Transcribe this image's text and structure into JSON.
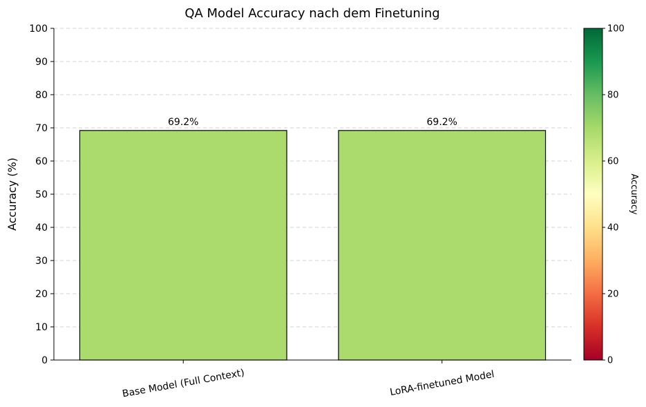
{
  "chart_data": {
    "type": "bar",
    "title": "QA Model Accuracy nach dem Finetuning",
    "xlabel": "",
    "ylabel": "Accuracy (%)",
    "ylim": [
      0,
      100
    ],
    "yticks": [
      0,
      10,
      20,
      30,
      40,
      50,
      60,
      70,
      80,
      90,
      100
    ],
    "categories": [
      "Base Model (Full Context)",
      "LoRA-finetuned Model"
    ],
    "values": [
      69.2,
      69.2
    ],
    "data_labels": [
      "69.2%",
      "69.2%"
    ],
    "grid": "y-dashed",
    "bar_color": "#abdb6d",
    "colorbar": {
      "label": "Accuracy",
      "range": [
        0,
        100
      ],
      "ticks": [
        0,
        20,
        40,
        60,
        80,
        100
      ],
      "colormap": "RdYlGn",
      "colors": [
        "#a50026",
        "#d73027",
        "#f46d43",
        "#fdae61",
        "#fee08b",
        "#ffffbf",
        "#d9ef8b",
        "#a6d96a",
        "#66bd63",
        "#1a9850",
        "#006837"
      ]
    }
  }
}
